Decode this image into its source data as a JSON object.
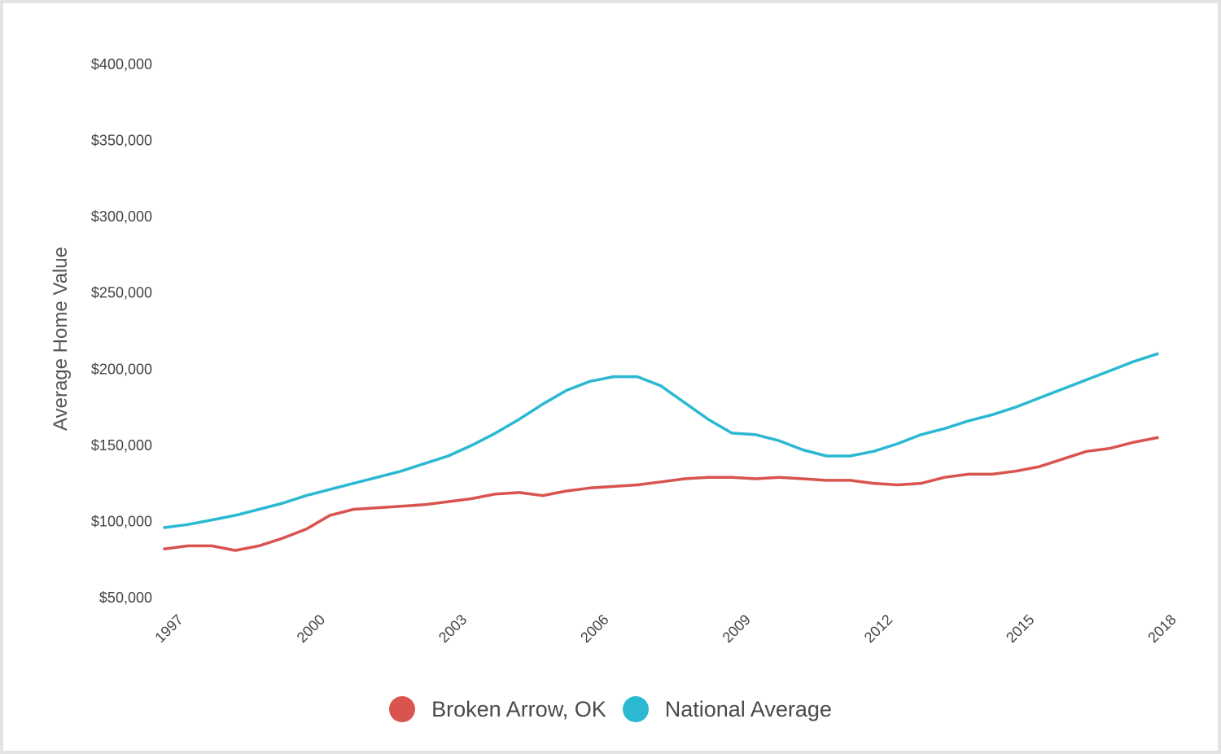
{
  "chart_data": {
    "type": "line",
    "ylabel": "Average Home Value",
    "xlabel": "",
    "ylim": [
      50000,
      400000
    ],
    "xlim": [
      1997.0,
      2018.0
    ],
    "y_ticks": [
      50000,
      100000,
      150000,
      200000,
      250000,
      300000,
      350000,
      400000
    ],
    "y_tick_labels": [
      "$50,000",
      "$100,000",
      "$150,000",
      "$200,000",
      "$250,000",
      "$300,000",
      "$350,000",
      "$400,000"
    ],
    "x_ticks": [
      1997,
      2000,
      2003,
      2006,
      2009,
      2012,
      2015,
      2018
    ],
    "x_tick_labels": [
      "1997",
      "2000",
      "2003",
      "2006",
      "2009",
      "2012",
      "2015",
      "2018"
    ],
    "grid": false,
    "legend_position": "bottom-center",
    "series": [
      {
        "name": "Broken Arrow, OK",
        "color": "#d9534f",
        "points": [
          [
            1997.0,
            82000
          ],
          [
            1997.5,
            84000
          ],
          [
            1998.0,
            84000
          ],
          [
            1998.5,
            81000
          ],
          [
            1999.0,
            84000
          ],
          [
            1999.5,
            89000
          ],
          [
            2000.0,
            95000
          ],
          [
            2000.5,
            104000
          ],
          [
            2001.0,
            108000
          ],
          [
            2001.5,
            109000
          ],
          [
            2002.0,
            110000
          ],
          [
            2002.5,
            111000
          ],
          [
            2003.0,
            113000
          ],
          [
            2003.5,
            115000
          ],
          [
            2004.0,
            118000
          ],
          [
            2004.5,
            119000
          ],
          [
            2005.0,
            117000
          ],
          [
            2005.5,
            120000
          ],
          [
            2006.0,
            122000
          ],
          [
            2006.5,
            123000
          ],
          [
            2007.0,
            124000
          ],
          [
            2007.5,
            126000
          ],
          [
            2008.0,
            128000
          ],
          [
            2008.5,
            129000
          ],
          [
            2009.0,
            129000
          ],
          [
            2009.5,
            128000
          ],
          [
            2010.0,
            129000
          ],
          [
            2010.5,
            128000
          ],
          [
            2011.0,
            127000
          ],
          [
            2011.5,
            127000
          ],
          [
            2012.0,
            125000
          ],
          [
            2012.5,
            124000
          ],
          [
            2013.0,
            125000
          ],
          [
            2013.5,
            129000
          ],
          [
            2014.0,
            131000
          ],
          [
            2014.5,
            131000
          ],
          [
            2015.0,
            133000
          ],
          [
            2015.5,
            136000
          ],
          [
            2016.0,
            141000
          ],
          [
            2016.5,
            146000
          ],
          [
            2017.0,
            148000
          ],
          [
            2017.5,
            152000
          ],
          [
            2018.0,
            155000
          ]
        ]
      },
      {
        "name": "National Average",
        "color": "#2bb8d2",
        "points": [
          [
            1997.0,
            96000
          ],
          [
            1997.5,
            98000
          ],
          [
            1998.0,
            101000
          ],
          [
            1998.5,
            104000
          ],
          [
            1999.0,
            108000
          ],
          [
            1999.5,
            112000
          ],
          [
            2000.0,
            117000
          ],
          [
            2000.5,
            121000
          ],
          [
            2001.0,
            125000
          ],
          [
            2001.5,
            129000
          ],
          [
            2002.0,
            133000
          ],
          [
            2002.5,
            138000
          ],
          [
            2003.0,
            143000
          ],
          [
            2003.5,
            150000
          ],
          [
            2004.0,
            158000
          ],
          [
            2004.5,
            167000
          ],
          [
            2005.0,
            177000
          ],
          [
            2005.5,
            186000
          ],
          [
            2006.0,
            192000
          ],
          [
            2006.5,
            195000
          ],
          [
            2007.0,
            195000
          ],
          [
            2007.5,
            189000
          ],
          [
            2008.0,
            178000
          ],
          [
            2008.5,
            167000
          ],
          [
            2009.0,
            158000
          ],
          [
            2009.5,
            157000
          ],
          [
            2010.0,
            153000
          ],
          [
            2010.5,
            147000
          ],
          [
            2011.0,
            143000
          ],
          [
            2011.5,
            143000
          ],
          [
            2012.0,
            146000
          ],
          [
            2012.5,
            151000
          ],
          [
            2013.0,
            157000
          ],
          [
            2013.5,
            161000
          ],
          [
            2014.0,
            166000
          ],
          [
            2014.5,
            170000
          ],
          [
            2015.0,
            175000
          ],
          [
            2015.5,
            181000
          ],
          [
            2016.0,
            187000
          ],
          [
            2016.5,
            193000
          ],
          [
            2017.0,
            199000
          ],
          [
            2017.5,
            205000
          ],
          [
            2018.0,
            210000
          ]
        ]
      }
    ]
  }
}
